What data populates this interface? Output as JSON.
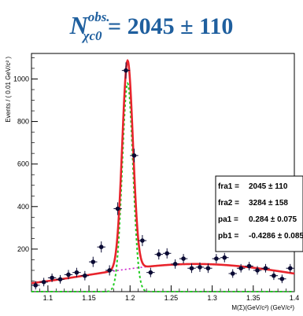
{
  "title": {
    "symbol": "N",
    "superscript": "obs.",
    "subscript": "χc0",
    "value_text": " = 2045 ± 110"
  },
  "chart_data": {
    "type": "scatter",
    "xlabel": "M(Σ)(GeV/c²) (GeV/c²)",
    "ylabel": "Events / ( 0.01 GeV/c² )",
    "xlim": [
      1.08,
      1.4
    ],
    "ylim": [
      0,
      1120
    ],
    "x_ticks": [
      "1.1",
      "1.15",
      "1.2",
      "1.25",
      "1.3",
      "1.35",
      "1.4"
    ],
    "y_ticks": [
      "200",
      "400",
      "600",
      "800",
      "1000"
    ],
    "x_tick_values": [
      1.1,
      1.15,
      1.2,
      1.25,
      1.3,
      1.35,
      1.4
    ],
    "y_tick_values": [
      200,
      400,
      600,
      800,
      1000
    ],
    "points": [
      {
        "x": 1.085,
        "y": 30,
        "err": 20
      },
      {
        "x": 1.095,
        "y": 45,
        "err": 20
      },
      {
        "x": 1.105,
        "y": 65,
        "err": 20
      },
      {
        "x": 1.115,
        "y": 58,
        "err": 20
      },
      {
        "x": 1.125,
        "y": 80,
        "err": 22
      },
      {
        "x": 1.135,
        "y": 90,
        "err": 22
      },
      {
        "x": 1.145,
        "y": 75,
        "err": 22
      },
      {
        "x": 1.155,
        "y": 140,
        "err": 24
      },
      {
        "x": 1.165,
        "y": 210,
        "err": 26
      },
      {
        "x": 1.175,
        "y": 100,
        "err": 24
      },
      {
        "x": 1.185,
        "y": 390,
        "err": 30
      },
      {
        "x": 1.195,
        "y": 1040,
        "err": 38
      },
      {
        "x": 1.205,
        "y": 640,
        "err": 32
      },
      {
        "x": 1.215,
        "y": 240,
        "err": 26
      },
      {
        "x": 1.225,
        "y": 90,
        "err": 22
      },
      {
        "x": 1.235,
        "y": 175,
        "err": 24
      },
      {
        "x": 1.245,
        "y": 180,
        "err": 24
      },
      {
        "x": 1.255,
        "y": 130,
        "err": 22
      },
      {
        "x": 1.265,
        "y": 155,
        "err": 22
      },
      {
        "x": 1.275,
        "y": 110,
        "err": 22
      },
      {
        "x": 1.285,
        "y": 115,
        "err": 22
      },
      {
        "x": 1.295,
        "y": 110,
        "err": 22
      },
      {
        "x": 1.305,
        "y": 155,
        "err": 22
      },
      {
        "x": 1.315,
        "y": 160,
        "err": 22
      },
      {
        "x": 1.325,
        "y": 85,
        "err": 20
      },
      {
        "x": 1.335,
        "y": 110,
        "err": 20
      },
      {
        "x": 1.345,
        "y": 120,
        "err": 20
      },
      {
        "x": 1.355,
        "y": 100,
        "err": 20
      },
      {
        "x": 1.365,
        "y": 110,
        "err": 20
      },
      {
        "x": 1.375,
        "y": 75,
        "err": 20
      },
      {
        "x": 1.385,
        "y": 60,
        "err": 20
      },
      {
        "x": 1.395,
        "y": 110,
        "err": 20
      }
    ],
    "fit_params": {
      "signal_mean": 1.197,
      "signal_sigma": 0.0065,
      "signal_peak": 980,
      "bkg_peak": 130,
      "bkg_mean": 1.28,
      "bkg_sigma": 0.13
    },
    "colors": {
      "total_fit": "#e8242c",
      "signal": "#22cc22",
      "background": "#cc22cc",
      "points": "#0a0a33"
    },
    "legend": {
      "rows": [
        {
          "name": "fra1 =",
          "value": "2045 ± 110"
        },
        {
          "name": "fra2 =",
          "value": "3284 ± 158"
        },
        {
          "name": "pa1 =",
          "value": "0.284 ± 0.075"
        },
        {
          "name": "pb1 =",
          "value": "-0.4286 ± 0.085"
        }
      ]
    }
  }
}
